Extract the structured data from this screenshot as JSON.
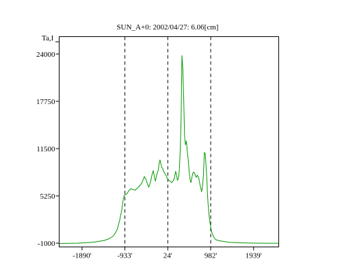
{
  "chart_data": {
    "type": "line",
    "title": "SUN_A+0: 2002/04/27: 6.06[cm]",
    "ylabel": "Ta,I",
    "xlim": [
      -2400,
      2500
    ],
    "ylim": [
      -1500,
      26300
    ],
    "x_ticks": [
      {
        "value": -1890,
        "label": "-1890'"
      },
      {
        "value": -933,
        "label": "-933'"
      },
      {
        "value": 24,
        "label": "24'"
      },
      {
        "value": 982,
        "label": "982'"
      },
      {
        "value": 1939,
        "label": "1939'"
      }
    ],
    "y_ticks": [
      {
        "value": -1000,
        "label": "-1000"
      },
      {
        "value": 5250,
        "label": "5250"
      },
      {
        "value": 11500,
        "label": "11500"
      },
      {
        "value": 17750,
        "label": "17750"
      },
      {
        "value": 24000,
        "label": "24000"
      }
    ],
    "vlines": [
      -933,
      24,
      982
    ],
    "series_color": "#009900",
    "x": [
      -2390,
      -2200,
      -2000,
      -1800,
      -1600,
      -1400,
      -1300,
      -1200,
      -1150,
      -1100,
      -1050,
      -1000,
      -970,
      -950,
      -920,
      -880,
      -850,
      -800,
      -750,
      -700,
      -650,
      -600,
      -550,
      -500,
      -470,
      -440,
      -400,
      -360,
      -330,
      -300,
      -270,
      -250,
      -230,
      -210,
      -190,
      -170,
      -150,
      -130,
      -110,
      -90,
      -70,
      -50,
      -30,
      -10,
      10,
      50,
      80,
      110,
      140,
      170,
      200,
      220,
      240,
      260,
      280,
      300,
      320,
      330,
      340,
      360,
      380,
      400,
      420,
      440,
      460,
      480,
      500,
      520,
      540,
      560,
      580,
      600,
      620,
      640,
      660,
      680,
      700,
      720,
      740,
      760,
      780,
      800,
      820,
      840,
      860,
      880,
      900,
      910,
      920,
      930,
      940,
      960,
      980,
      1000,
      1020,
      1040,
      1060,
      1080,
      1100,
      1150,
      1200,
      1300,
      1400,
      1500,
      1600,
      1800,
      2000,
      2200,
      2400,
      2490
    ],
    "y": [
      -1050,
      -1030,
      -1000,
      -950,
      -850,
      -650,
      -450,
      -100,
      300,
      900,
      2000,
      3500,
      4800,
      5300,
      5400,
      5600,
      5900,
      6200,
      6100,
      6000,
      6300,
      6600,
      7000,
      7800,
      7500,
      7000,
      6400,
      7100,
      8000,
      8600,
      7600,
      7200,
      7900,
      8300,
      8600,
      9500,
      10000,
      9500,
      9000,
      8900,
      8500,
      8300,
      8100,
      7900,
      7600,
      7300,
      7200,
      7000,
      7200,
      7600,
      8500,
      8000,
      7300,
      7600,
      8500,
      11000,
      15000,
      19000,
      23800,
      22000,
      18000,
      13000,
      12000,
      12500,
      11000,
      10000,
      8500,
      7500,
      7000,
      7600,
      8200,
      8400,
      8300,
      7900,
      7700,
      8000,
      7800,
      7500,
      6800,
      6300,
      5800,
      6500,
      8000,
      11000,
      10800,
      9000,
      7000,
      5500,
      4500,
      3800,
      3000,
      2000,
      1200,
      600,
      200,
      -100,
      -300,
      -450,
      -550,
      -650,
      -700,
      -800,
      -880,
      -920,
      -950,
      -980,
      -1000,
      -1010,
      -1015,
      -1015
    ]
  }
}
